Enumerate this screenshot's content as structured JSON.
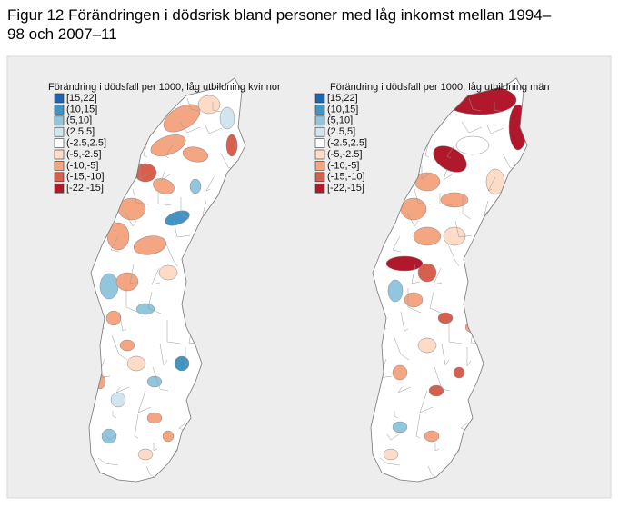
{
  "title": "Figur 12 Förändringen i dödsrisk bland personer med låg inkomst mellan 1994–98 och 2007–11",
  "maps": [
    {
      "legend_title": "Förändring i dödsfall per 1000, låg utbildning kvinnor",
      "legend": [
        {
          "label": "[15,22]",
          "color": "#2166ac"
        },
        {
          "label": "(10,15]",
          "color": "#4393c3"
        },
        {
          "label": "(5,10]",
          "color": "#92c5de"
        },
        {
          "label": "(2.5,5]",
          "color": "#d1e5f0"
        },
        {
          "label": "(-2.5,2.5]",
          "color": "#ffffff"
        },
        {
          "label": "(-5,-2.5]",
          "color": "#fddbc7"
        },
        {
          "label": "(-10,-5]",
          "color": "#f4a582"
        },
        {
          "label": "(-15,-10]",
          "color": "#d6604d"
        },
        {
          "label": "[-22,-15]",
          "color": "#b2182b"
        }
      ]
    },
    {
      "legend_title": "Förändring i dödsfall per 1000, låg utbildning män",
      "legend": [
        {
          "label": "[15,22]",
          "color": "#2166ac"
        },
        {
          "label": "(10,15]",
          "color": "#4393c3"
        },
        {
          "label": "(5,10]",
          "color": "#92c5de"
        },
        {
          "label": "(2.5,5]",
          "color": "#d1e5f0"
        },
        {
          "label": "(-2.5,2.5]",
          "color": "#ffffff"
        },
        {
          "label": "(-5,-2.5]",
          "color": "#fddbc7"
        },
        {
          "label": "(-10,-5]",
          "color": "#f4a582"
        },
        {
          "label": "(-15,-10]",
          "color": "#d6604d"
        },
        {
          "label": "[-22,-15]",
          "color": "#b2182b"
        }
      ]
    }
  ]
}
